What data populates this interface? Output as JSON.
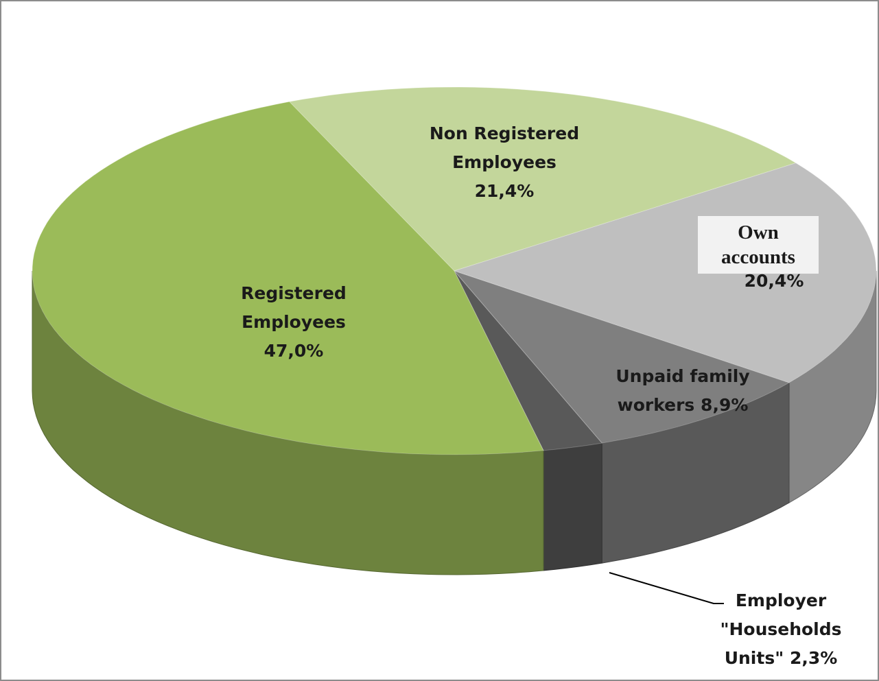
{
  "chart_data": {
    "type": "pie",
    "categories": [
      "Registered Employees",
      "Non Registered Employees",
      "Own accounts",
      "Unpaid family workers",
      "Employer \"Households Units\""
    ],
    "values": [
      47.0,
      21.4,
      20.4,
      8.9,
      2.3
    ],
    "value_labels": [
      "47,0%",
      "21,4%",
      "20,4%",
      "8,9%",
      "2,3%"
    ],
    "colors": [
      "#9bbb59",
      "#c3d69b",
      "#bfbfbf",
      "#7f7f7f",
      "#595959"
    ]
  }
}
